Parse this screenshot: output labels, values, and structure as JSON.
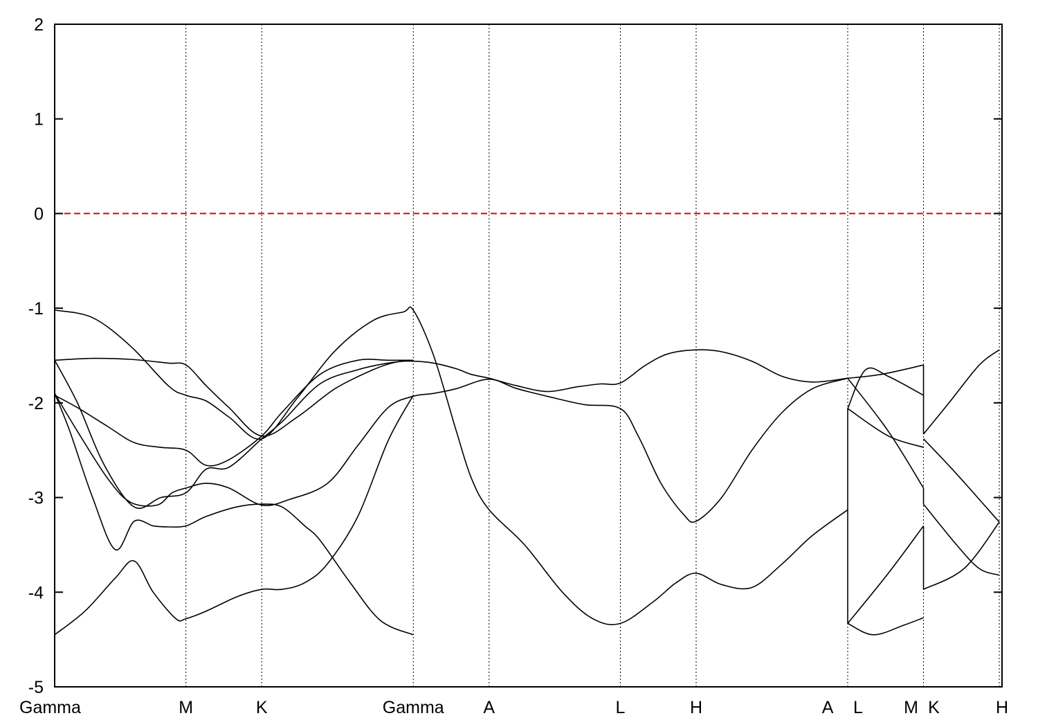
{
  "chart_data": {
    "type": "line",
    "title": "",
    "xlabel": "",
    "ylabel": "",
    "ylim": [
      -5,
      2
    ],
    "yticks": [
      -5,
      -4,
      -3,
      -2,
      -1,
      0,
      1,
      2
    ],
    "xlim": [
      0,
      12.5
    ],
    "kpoints": [
      {
        "label": "Gamma",
        "x": 0
      },
      {
        "label": "M",
        "x": 1.732
      },
      {
        "label": "K",
        "x": 2.732
      },
      {
        "label": "Gamma",
        "x": 4.732
      },
      {
        "label": "A",
        "x": 5.732
      },
      {
        "label": "L",
        "x": 7.464
      },
      {
        "label": "H",
        "x": 8.464
      },
      {
        "label": "A",
        "x": 10.464
      },
      {
        "label": "L",
        "x": 10.464
      },
      {
        "label": "M",
        "x": 11.464
      },
      {
        "label": "K",
        "x": 11.464
      },
      {
        "label": "H",
        "x": 12.464
      }
    ],
    "kpoint_labels": [
      {
        "label": "Gamma",
        "x": 0
      },
      {
        "label": "M",
        "x": 1.732
      },
      {
        "label": "K",
        "x": 2.732
      },
      {
        "label": "Gamma",
        "x": 4.732
      },
      {
        "label": "A",
        "x": 5.732
      },
      {
        "label": "L",
        "x": 7.464
      },
      {
        "label": "H",
        "x": 8.464
      },
      {
        "label": "A",
        "x": 10.2
      },
      {
        "label": "L",
        "x": 10.6
      },
      {
        "label": "M",
        "x": 11.3
      },
      {
        "label": "K",
        "x": 11.6
      },
      {
        "label": "H",
        "x": 12.464
      }
    ],
    "fermi_level": 0,
    "fermi_color": "#e00000",
    "band_color": "#000000",
    "series": [
      {
        "x": [
          0,
          0.5,
          1.0,
          1.5,
          1.732,
          2.0,
          2.3,
          2.732,
          3.2,
          3.7,
          4.2,
          4.6,
          4.732,
          5.0,
          5.3,
          5.5,
          5.732,
          6.2,
          6.7,
          7.1,
          7.464,
          7.9,
          8.2,
          8.464,
          8.8,
          9.2,
          9.6,
          10.0,
          10.464
        ],
        "y": [
          -1.02,
          -1.1,
          -1.4,
          -1.82,
          -1.92,
          -1.98,
          -2.15,
          -2.38,
          -1.95,
          -1.45,
          -1.13,
          -1.04,
          -1.02,
          -1.5,
          -2.3,
          -2.8,
          -3.13,
          -3.5,
          -4.0,
          -4.28,
          -4.33,
          -4.1,
          -3.9,
          -3.8,
          -3.92,
          -3.95,
          -3.7,
          -3.4,
          -3.13
        ]
      },
      {
        "x": [
          0,
          0.5,
          1.0,
          1.5,
          1.732,
          2.0,
          2.3,
          2.732,
          3.2,
          3.7,
          4.2,
          4.5,
          4.732,
          5.0,
          5.3,
          5.5,
          5.732,
          6.1,
          6.5,
          6.9,
          7.2,
          7.464,
          7.8,
          8.1,
          8.464,
          8.8,
          9.2,
          9.6,
          10.0,
          10.464
        ],
        "y": [
          -1.55,
          -1.53,
          -1.54,
          -1.58,
          -1.6,
          -1.82,
          -2.05,
          -2.35,
          -2.15,
          -1.85,
          -1.65,
          -1.57,
          -1.56,
          -1.58,
          -1.64,
          -1.7,
          -1.74,
          -1.82,
          -1.88,
          -1.83,
          -1.8,
          -1.79,
          -1.6,
          -1.48,
          -1.44,
          -1.46,
          -1.56,
          -1.72,
          -1.78,
          -1.74
        ]
      },
      {
        "x": [
          0,
          0.3,
          0.7,
          1.0,
          1.35,
          1.55,
          1.732,
          2.0,
          2.3,
          2.732,
          3.1,
          3.6,
          4.0,
          4.4,
          4.732,
          5.0,
          5.3,
          5.732,
          6.1,
          6.6,
          7.0,
          7.464,
          7.7,
          8.0,
          8.3,
          8.464,
          8.8,
          9.2,
          9.6,
          10.0,
          10.464
        ],
        "y": [
          -1.9,
          -2.3,
          -2.8,
          -3.05,
          -3.08,
          -2.95,
          -2.9,
          -2.85,
          -2.9,
          -3.08,
          -3.02,
          -2.85,
          -2.45,
          -2.05,
          -1.93,
          -1.9,
          -1.85,
          -1.75,
          -1.85,
          -1.95,
          -2.02,
          -2.06,
          -2.35,
          -2.85,
          -3.18,
          -3.25,
          -3.0,
          -2.5,
          -2.1,
          -1.85,
          -1.74
        ]
      },
      {
        "x": [
          0,
          0.3,
          0.7,
          1.05,
          1.4,
          1.732,
          2.0,
          2.3,
          2.732,
          3.0,
          3.5,
          4.0,
          4.4,
          4.732
        ],
        "y": [
          -1.92,
          -2.05,
          -2.25,
          -2.42,
          -2.47,
          -2.5,
          -2.66,
          -2.6,
          -2.35,
          -2.1,
          -1.7,
          -1.55,
          -1.55,
          -1.55
        ]
      },
      {
        "x": [
          0,
          0.3,
          0.65,
          1.05,
          1.4,
          1.732,
          2.0,
          2.3,
          2.732,
          3.0,
          3.5,
          4.0,
          4.4,
          4.732
        ],
        "y": [
          -1.55,
          -2.0,
          -2.65,
          -3.1,
          -3.0,
          -2.95,
          -2.7,
          -2.68,
          -2.38,
          -2.2,
          -1.8,
          -1.65,
          -1.58,
          -1.55
        ]
      },
      {
        "x": [
          0,
          0.2,
          0.5,
          0.8,
          1.05,
          1.3,
          1.5,
          1.732,
          2.0,
          2.4,
          2.732,
          3.0,
          3.3,
          3.5,
          3.9,
          4.3,
          4.732
        ],
        "y": [
          -1.9,
          -2.3,
          -3.0,
          -3.55,
          -3.25,
          -3.3,
          -3.31,
          -3.3,
          -3.2,
          -3.1,
          -3.07,
          -3.1,
          -3.3,
          -3.45,
          -3.9,
          -4.3,
          -4.45
        ]
      },
      {
        "x": [
          0,
          0.4,
          0.8,
          1.05,
          1.3,
          1.6,
          1.732,
          2.0,
          2.4,
          2.732,
          3.0,
          3.3,
          3.6,
          4.0,
          4.4,
          4.732
        ],
        "y": [
          -4.45,
          -4.2,
          -3.85,
          -3.67,
          -4.0,
          -4.28,
          -4.28,
          -4.2,
          -4.05,
          -3.97,
          -3.97,
          -3.9,
          -3.7,
          -3.2,
          -2.4,
          -1.92
        ]
      },
      {
        "x": [
          10.464,
          10.9,
          11.464
        ],
        "y": [
          -1.74,
          -1.7,
          -1.6
        ]
      },
      {
        "x": [
          10.464,
          10.7,
          11.0,
          11.464
        ],
        "y": [
          -2.06,
          -1.65,
          -1.72,
          -1.92
        ]
      },
      {
        "x": [
          10.464,
          11.0,
          11.464
        ],
        "y": [
          -2.06,
          -2.35,
          -2.47
        ]
      },
      {
        "x": [
          10.464,
          11.0,
          11.464
        ],
        "y": [
          -1.74,
          -2.3,
          -2.9
        ]
      },
      {
        "x": [
          10.464,
          11.0,
          11.464
        ],
        "y": [
          -4.33,
          -3.8,
          -3.3
        ]
      },
      {
        "x": [
          10.464,
          10.8,
          11.2,
          11.464
        ],
        "y": [
          -4.33,
          -4.45,
          -4.35,
          -4.27
        ]
      },
      {
        "x": [
          11.464,
          11.8,
          12.2,
          12.464
        ],
        "y": [
          -2.33,
          -2.0,
          -1.6,
          -1.44
        ]
      },
      {
        "x": [
          11.464,
          11.9,
          12.464
        ],
        "y": [
          -2.38,
          -2.75,
          -3.26
        ]
      },
      {
        "x": [
          11.464,
          11.9,
          12.2,
          12.464
        ],
        "y": [
          -3.07,
          -3.5,
          -3.75,
          -3.82
        ]
      },
      {
        "x": [
          11.464,
          12.0,
          12.464
        ],
        "y": [
          -3.97,
          -3.75,
          -3.26
        ]
      }
    ],
    "discontinuities": [
      {
        "x": 10.464,
        "y": [
          -2.06,
          -4.33
        ]
      },
      {
        "x": 11.464,
        "y": [
          -2.33,
          -1.6
        ]
      },
      {
        "x": 11.464,
        "y": [
          -3.3,
          -3.97
        ]
      },
      {
        "x": 11.464,
        "y": [
          -2.9,
          -3.07
        ]
      }
    ]
  }
}
